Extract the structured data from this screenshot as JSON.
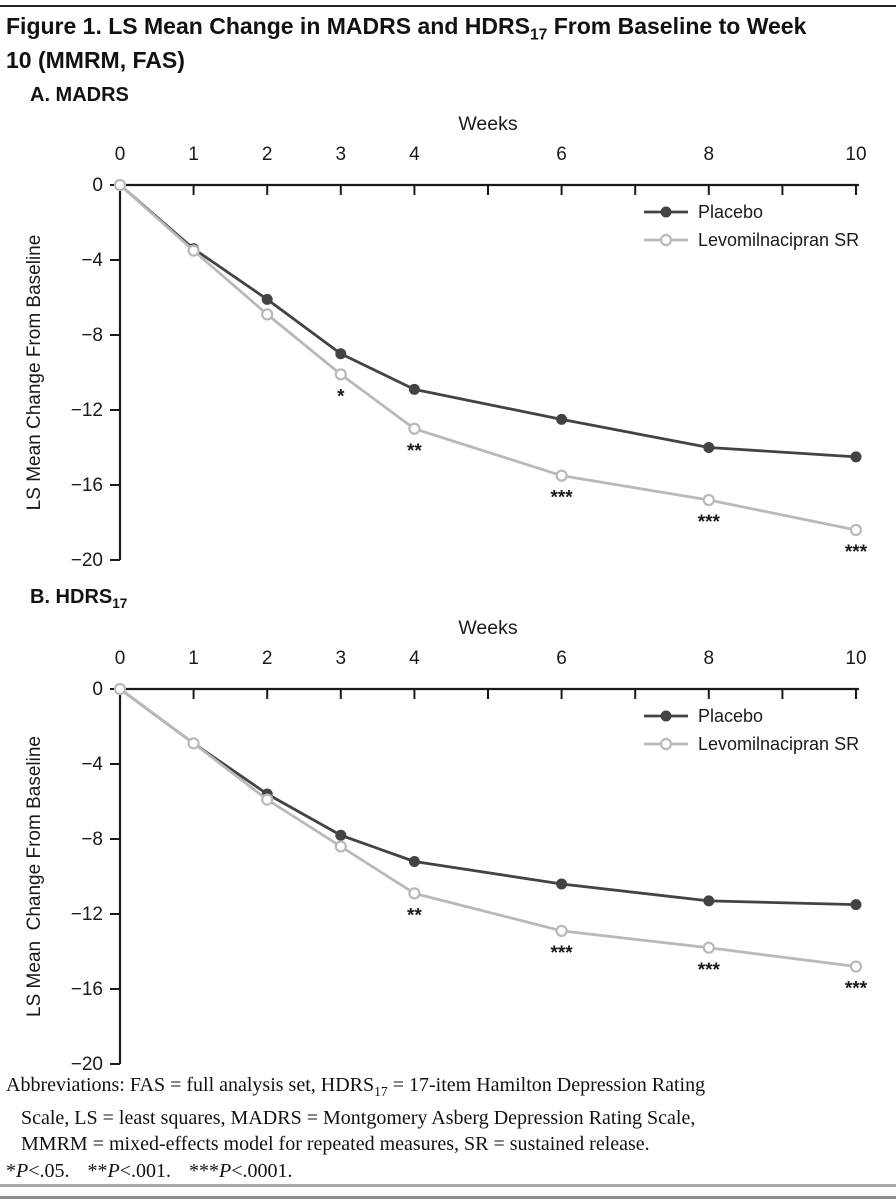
{
  "figure": {
    "title": {
      "line1_pre": "Figure 1. LS Mean Change in MADRS and HDRS",
      "line1_sub": "17",
      "line1_post": " From Baseline to Week",
      "line2": "10 (MMRM, FAS)"
    }
  },
  "panels": [
    {
      "label_pre": "A. MADRS",
      "label_sub": ""
    },
    {
      "label_pre": "B. HDRS",
      "label_sub": "17"
    }
  ],
  "colors": {
    "ink": "#1a1a1a",
    "placebo": "#434343",
    "levomilnacipran": "#b9b9b9"
  },
  "chart_data": [
    {
      "type": "line",
      "title": "A. MADRS",
      "x": [
        0,
        1,
        2,
        3,
        4,
        6,
        8,
        10
      ],
      "x_axis": {
        "title": "Weeks",
        "range": [
          0,
          10
        ],
        "ticks": [
          0,
          1,
          2,
          3,
          4,
          5,
          6,
          7,
          8,
          9,
          10
        ],
        "tick_labels": [
          "0",
          "1",
          "2",
          "3",
          "4",
          "",
          "6",
          "",
          "8",
          "",
          "10"
        ]
      },
      "y_axis": {
        "title": "LS Mean Change From Baseline",
        "range": [
          0,
          -20
        ],
        "ticks": [
          0,
          -4,
          -8,
          -12,
          -16,
          -20
        ],
        "tick_labels": [
          "0",
          "−4",
          "−8",
          "−12",
          "−16",
          "−20"
        ]
      },
      "grid": false,
      "legend_position": "top-right",
      "series": [
        {
          "name": "Placebo",
          "color": "#434343",
          "marker": "filled",
          "values": [
            0,
            -3.4,
            -6.1,
            -9.0,
            -10.9,
            -12.5,
            -14.0,
            -14.5
          ]
        },
        {
          "name": "Levomilnacipran SR",
          "color": "#b9b9b9",
          "marker": "open",
          "values": [
            0,
            -3.5,
            -6.9,
            -10.1,
            -13.0,
            -15.5,
            -16.8,
            -18.4
          ]
        }
      ],
      "annotations": [
        {
          "x": 3,
          "y": -10.1,
          "text": "*"
        },
        {
          "x": 4,
          "y": -13.0,
          "text": "**"
        },
        {
          "x": 6,
          "y": -15.5,
          "text": "***"
        },
        {
          "x": 8,
          "y": -16.8,
          "text": "***"
        },
        {
          "x": 10,
          "y": -18.4,
          "text": "***"
        }
      ]
    },
    {
      "type": "line",
      "title": "B. HDRS17",
      "x": [
        0,
        1,
        2,
        3,
        4,
        6,
        8,
        10
      ],
      "x_axis": {
        "title": "Weeks",
        "range": [
          0,
          10
        ],
        "ticks": [
          0,
          1,
          2,
          3,
          4,
          5,
          6,
          7,
          8,
          9,
          10
        ],
        "tick_labels": [
          "0",
          "1",
          "2",
          "3",
          "4",
          "",
          "6",
          "",
          "8",
          "",
          "10"
        ]
      },
      "y_axis": {
        "title": "LS Mean  Change From Baseline",
        "range": [
          0,
          -20
        ],
        "ticks": [
          0,
          -4,
          -8,
          -12,
          -16,
          -20
        ],
        "tick_labels": [
          "0",
          "−4",
          "−8",
          "−12",
          "−16",
          "−20"
        ]
      },
      "grid": false,
      "legend_position": "top-right",
      "series": [
        {
          "name": "Placebo",
          "color": "#434343",
          "marker": "filled",
          "values": [
            0,
            -2.9,
            -5.6,
            -7.8,
            -9.2,
            -10.4,
            -11.3,
            -11.5
          ]
        },
        {
          "name": "Levomilnacipran SR",
          "color": "#b9b9b9",
          "marker": "open",
          "values": [
            0,
            -2.9,
            -5.9,
            -8.4,
            -10.9,
            -12.9,
            -13.8,
            -14.8
          ]
        }
      ],
      "annotations": [
        {
          "x": 4,
          "y": -10.9,
          "text": "**"
        },
        {
          "x": 6,
          "y": -12.9,
          "text": "***"
        },
        {
          "x": 8,
          "y": -13.8,
          "text": "***"
        },
        {
          "x": 10,
          "y": -14.8,
          "text": "***"
        }
      ]
    }
  ],
  "footer": {
    "abbr": {
      "line1_pre": "Abbreviations: FAS = full analysis set, HDRS",
      "line1_sub": "17",
      "line1_post": " = 17-item Hamilton Depression Rating",
      "line2": "Scale, LS = least squares, MADRS = Montgomery Asberg Depression Rating Scale,",
      "line3": "MMRM = mixed-effects model for repeated measures, SR = sustained release."
    },
    "pvalues": [
      {
        "stars": "*",
        "p": "P",
        "rest": "<.05."
      },
      {
        "stars": "**",
        "p": "P",
        "rest": "<.001."
      },
      {
        "stars": "***",
        "p": "P",
        "rest": "<.0001."
      }
    ]
  }
}
